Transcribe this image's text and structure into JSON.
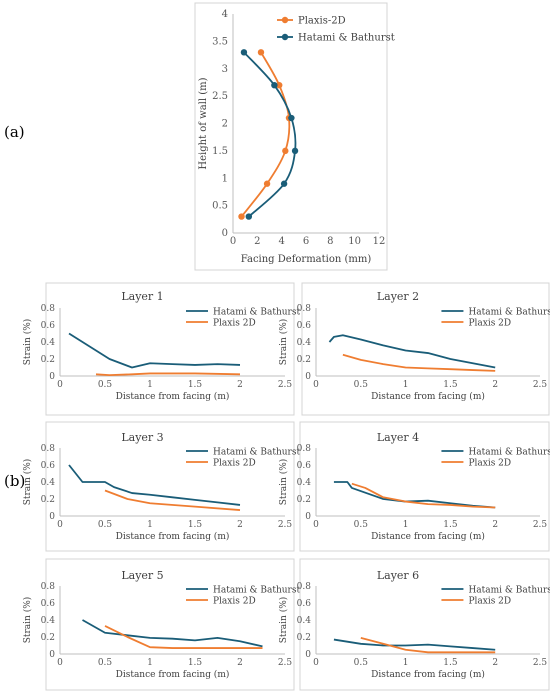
{
  "panel_labels": [
    "(a)",
    "(b)"
  ],
  "colors": {
    "hatami": "#1a5d78",
    "plaxis": "#ef7d31"
  },
  "chart_data": [
    {
      "id": "a",
      "type": "line",
      "title": "",
      "xlabel": "Facing Deformation (mm)",
      "ylabel": "Height of wall (m)",
      "xlim": [
        0,
        12
      ],
      "ylim": [
        0,
        4
      ],
      "xticks": [
        0,
        2,
        4,
        6,
        8,
        10,
        12
      ],
      "yticks": [
        0,
        0.5,
        1,
        1.5,
        2,
        2.5,
        3,
        3.5,
        4
      ],
      "ytick_labels": [
        "0",
        "0.5",
        "1",
        "1.5",
        "2",
        "2.5",
        "3",
        "3.5",
        "4"
      ],
      "legend": "top-right",
      "markers": true,
      "smooth": true,
      "series": [
        {
          "name": "Plaxis-2D",
          "color": "#ef7d31",
          "x": [
            0.7,
            2.8,
            4.3,
            4.6,
            3.8,
            2.3
          ],
          "y": [
            0.3,
            0.9,
            1.5,
            2.1,
            2.7,
            3.3
          ]
        },
        {
          "name": "Hatami & Bathurst",
          "color": "#1a5d78",
          "x": [
            1.3,
            4.2,
            5.1,
            4.8,
            3.4,
            0.9
          ],
          "y": [
            0.3,
            0.9,
            1.5,
            2.1,
            2.7,
            3.3
          ]
        }
      ]
    },
    {
      "id": "L1",
      "type": "line",
      "title": "Layer 1",
      "xlabel": "Distance from facing (m)",
      "ylabel": "Strain  (%)",
      "xlim": [
        0,
        2.5
      ],
      "ylim": [
        0,
        0.8
      ],
      "xticks": [
        0,
        0.5,
        1,
        1.5,
        2,
        2.5
      ],
      "yticks": [
        0,
        0.2,
        0.4,
        0.6,
        0.8
      ],
      "legend": "top-right",
      "series": [
        {
          "name": "Hatami & Bathurst",
          "color": "#1a5d78",
          "x": [
            0.1,
            0.4,
            0.55,
            0.8,
            1.0,
            1.25,
            1.5,
            1.75,
            2.0
          ],
          "y": [
            0.5,
            0.3,
            0.2,
            0.1,
            0.15,
            0.14,
            0.13,
            0.14,
            0.13
          ]
        },
        {
          "name": "Plaxis 2D",
          "color": "#ef7d31",
          "x": [
            0.4,
            0.55,
            0.8,
            1.0,
            1.5,
            2.0
          ],
          "y": [
            0.02,
            0.01,
            0.02,
            0.03,
            0.03,
            0.02
          ]
        }
      ]
    },
    {
      "id": "L2",
      "type": "line",
      "title": "Layer 2",
      "xlabel": "Distance from facing (m)",
      "ylabel": "Strain  (%)",
      "xlim": [
        0,
        2.5
      ],
      "ylim": [
        0,
        0.8
      ],
      "xticks": [
        0,
        0.5,
        1,
        1.5,
        2,
        2.5
      ],
      "yticks": [
        0,
        0.2,
        0.4,
        0.6,
        0.8
      ],
      "legend": "top-right",
      "series": [
        {
          "name": "Hatami & Bathurst",
          "color": "#1a5d78",
          "x": [
            0.15,
            0.2,
            0.3,
            0.5,
            0.75,
            1.0,
            1.25,
            1.5,
            1.75,
            2.0
          ],
          "y": [
            0.4,
            0.46,
            0.48,
            0.43,
            0.36,
            0.3,
            0.27,
            0.2,
            0.15,
            0.1
          ]
        },
        {
          "name": "Plaxis 2D",
          "color": "#ef7d31",
          "x": [
            0.3,
            0.5,
            0.75,
            1.0,
            1.25,
            1.5,
            1.75,
            2.0
          ],
          "y": [
            0.25,
            0.19,
            0.14,
            0.1,
            0.09,
            0.08,
            0.07,
            0.06
          ]
        }
      ]
    },
    {
      "id": "L3",
      "type": "line",
      "title": "Layer 3",
      "xlabel": "Distance from facing (m)",
      "ylabel": "Strain  (%)",
      "xlim": [
        0,
        2.5
      ],
      "ylim": [
        0,
        0.8
      ],
      "xticks": [
        0,
        0.5,
        1,
        1.5,
        2,
        2.5
      ],
      "yticks": [
        0,
        0.2,
        0.4,
        0.6,
        0.8
      ],
      "legend": "top-right",
      "series": [
        {
          "name": "Hatami & Bathurst",
          "color": "#1a5d78",
          "x": [
            0.1,
            0.25,
            0.5,
            0.6,
            0.8,
            1.0,
            1.25,
            1.5,
            1.75,
            2.0
          ],
          "y": [
            0.6,
            0.4,
            0.4,
            0.34,
            0.27,
            0.25,
            0.22,
            0.19,
            0.16,
            0.13
          ]
        },
        {
          "name": "Plaxis 2D",
          "color": "#ef7d31",
          "x": [
            0.5,
            0.75,
            1.0,
            1.5,
            2.0
          ],
          "y": [
            0.3,
            0.2,
            0.15,
            0.11,
            0.07
          ]
        }
      ]
    },
    {
      "id": "L4",
      "type": "line",
      "title": "Layer 4",
      "xlabel": "Distance from facing (m)",
      "ylabel": "Strain  (%)",
      "xlim": [
        0,
        2.5
      ],
      "ylim": [
        0,
        0.8
      ],
      "xticks": [
        0,
        0.5,
        1,
        1.5,
        2,
        2.5
      ],
      "yticks": [
        0,
        0.2,
        0.4,
        0.6,
        0.8
      ],
      "legend": "top-right",
      "series": [
        {
          "name": "Hatami & Bathurst",
          "color": "#1a5d78",
          "x": [
            0.2,
            0.35,
            0.4,
            0.75,
            1.0,
            1.25,
            1.5,
            1.75,
            2.0
          ],
          "y": [
            0.4,
            0.4,
            0.33,
            0.2,
            0.17,
            0.18,
            0.15,
            0.12,
            0.1
          ]
        },
        {
          "name": "Plaxis 2D",
          "color": "#ef7d31",
          "x": [
            0.4,
            0.55,
            0.75,
            1.0,
            1.25,
            1.5,
            1.75,
            2.0
          ],
          "y": [
            0.38,
            0.33,
            0.22,
            0.17,
            0.14,
            0.13,
            0.11,
            0.1
          ]
        }
      ]
    },
    {
      "id": "L5",
      "type": "line",
      "title": "Layer 5",
      "xlabel": "Distance from facing (m)",
      "ylabel": "Strain  (%)",
      "xlim": [
        0,
        2.5
      ],
      "ylim": [
        0,
        0.8
      ],
      "xticks": [
        0,
        0.5,
        1,
        1.5,
        2,
        2.5
      ],
      "yticks": [
        0,
        0.2,
        0.4,
        0.6,
        0.8
      ],
      "legend": "top-right",
      "series": [
        {
          "name": "Hatami & Bathurst",
          "color": "#1a5d78",
          "x": [
            0.25,
            0.5,
            0.75,
            1.0,
            1.25,
            1.5,
            1.75,
            2.0,
            2.25
          ],
          "y": [
            0.4,
            0.25,
            0.22,
            0.19,
            0.18,
            0.16,
            0.19,
            0.15,
            0.09
          ]
        },
        {
          "name": "Plaxis 2D",
          "color": "#ef7d31",
          "x": [
            0.5,
            0.75,
            1.0,
            1.25,
            1.5,
            1.75,
            2.0,
            2.25
          ],
          "y": [
            0.33,
            0.2,
            0.08,
            0.07,
            0.07,
            0.07,
            0.07,
            0.07
          ]
        }
      ]
    },
    {
      "id": "L6",
      "type": "line",
      "title": "Layer 6",
      "xlabel": "Distance from facing (m)",
      "ylabel": "Strain  (%)",
      "xlim": [
        0,
        2.5
      ],
      "ylim": [
        0,
        0.8
      ],
      "xticks": [
        0,
        0.5,
        1,
        1.5,
        2,
        2.5
      ],
      "yticks": [
        0,
        0.2,
        0.4,
        0.6,
        0.8
      ],
      "legend": "top-right",
      "series": [
        {
          "name": "Hatami & Bathurst",
          "color": "#1a5d78",
          "x": [
            0.2,
            0.5,
            0.75,
            1.0,
            1.25,
            1.5,
            1.75,
            2.0
          ],
          "y": [
            0.17,
            0.12,
            0.1,
            0.1,
            0.11,
            0.09,
            0.07,
            0.05
          ]
        },
        {
          "name": "Plaxis 2D",
          "color": "#ef7d31",
          "x": [
            0.5,
            0.75,
            1.0,
            1.25,
            1.5,
            1.75,
            2.0
          ],
          "y": [
            0.19,
            0.12,
            0.05,
            0.02,
            0.02,
            0.02,
            0.02
          ]
        }
      ]
    }
  ]
}
